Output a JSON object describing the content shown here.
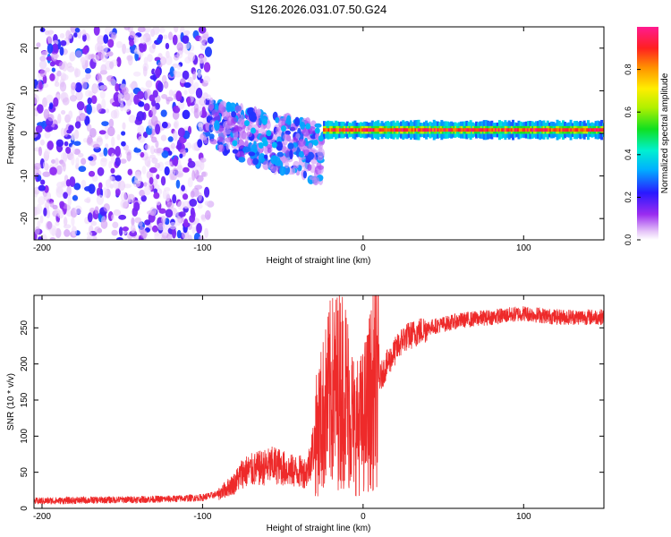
{
  "figure_title": "S126.2026.031.07.50.G24",
  "colors": {
    "snr_line": "#ee2a2a",
    "axis": "#000000"
  },
  "chart_data": [
    {
      "type": "heatmap",
      "title": "S126.2026.031.07.50.G24",
      "xlabel": "Height of straight line (km)",
      "ylabel": "Frequency (Hz)",
      "xlim": [
        -205,
        150
      ],
      "ylim": [
        -25,
        25
      ],
      "xticks": [
        -200,
        -100,
        0,
        100
      ],
      "yticks": [
        -20,
        -10,
        0,
        10,
        20
      ],
      "colorbar": {
        "label": "Normalized spectral amplitude",
        "range": [
          0,
          1
        ],
        "ticks": [
          0.0,
          0.2,
          0.4,
          0.6,
          0.8
        ]
      },
      "regions": [
        {
          "name": "noise",
          "x_range": [
            -205,
            -95
          ],
          "frequency_range": [
            -25,
            25
          ],
          "amplitude": [
            0.05,
            0.2
          ]
        },
        {
          "name": "transition",
          "x_range": [
            -95,
            -25
          ],
          "frequency_range": [
            -12,
            8
          ],
          "amplitude": [
            0.15,
            0.35
          ]
        },
        {
          "name": "signal",
          "x_range": [
            -25,
            150
          ],
          "frequency_center": 0.8,
          "amplitude": [
            0.8,
            1.0
          ]
        }
      ]
    },
    {
      "type": "line",
      "title": "",
      "xlabel": "Height of straight line (km)",
      "ylabel": "SNR (10 * v/v)",
      "xlim": [
        -205,
        150
      ],
      "ylim": [
        0,
        295
      ],
      "xticks": [
        -200,
        -100,
        0,
        100
      ],
      "yticks": [
        0,
        50,
        100,
        150,
        200,
        250
      ],
      "series": [
        {
          "name": "SNR",
          "x": [
            -205,
            -180,
            -150,
            -120,
            -100,
            -90,
            -80,
            -75,
            -65,
            -55,
            -45,
            -35,
            -28,
            -20,
            -12,
            -5,
            0,
            5,
            15,
            25,
            40,
            60,
            80,
            100,
            120,
            150
          ],
          "values": [
            10,
            11,
            12,
            13,
            15,
            20,
            35,
            50,
            55,
            60,
            52,
            50,
            110,
            160,
            170,
            110,
            120,
            155,
            200,
            235,
            250,
            260,
            265,
            270,
            265,
            265
          ]
        }
      ]
    }
  ]
}
